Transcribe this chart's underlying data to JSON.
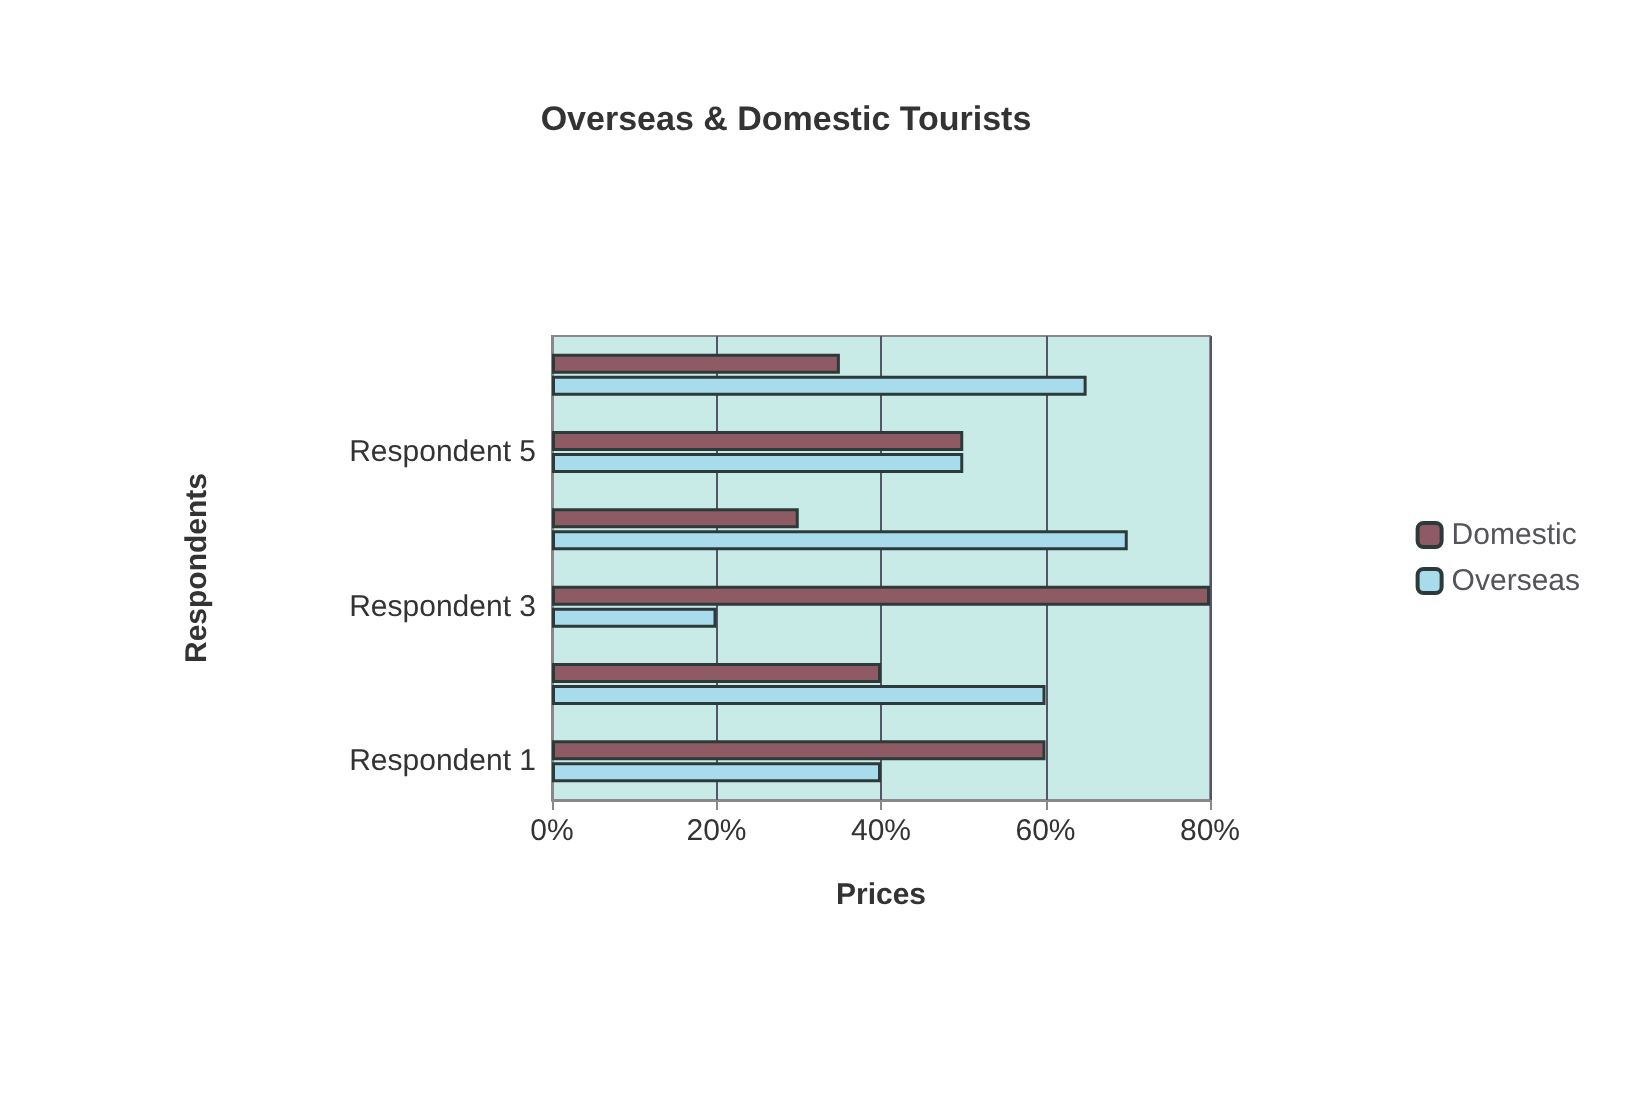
{
  "chart_data": {
    "type": "bar",
    "orientation": "horizontal",
    "title": "Overseas & Domestic Tourists",
    "xlabel": "Prices",
    "ylabel": "Respondents",
    "categories": [
      null,
      "Respondent 5",
      null,
      "Respondent 3",
      null,
      "Respondent 1"
    ],
    "series": [
      {
        "name": "Domestic",
        "color": "#8e5a63",
        "values": [
          35,
          50,
          30,
          80,
          40,
          60
        ]
      },
      {
        "name": "Overseas",
        "color": "#a8dcec",
        "values": [
          65,
          50,
          70,
          20,
          60,
          40
        ]
      }
    ],
    "xlim": [
      0,
      80
    ],
    "xticks": [
      {
        "value": 0,
        "label": "0%"
      },
      {
        "value": 20,
        "label": "20%"
      },
      {
        "value": 40,
        "label": "40%"
      },
      {
        "value": 60,
        "label": "60%"
      },
      {
        "value": 80,
        "label": "80%"
      }
    ],
    "grid": "x",
    "legend": "right"
  }
}
